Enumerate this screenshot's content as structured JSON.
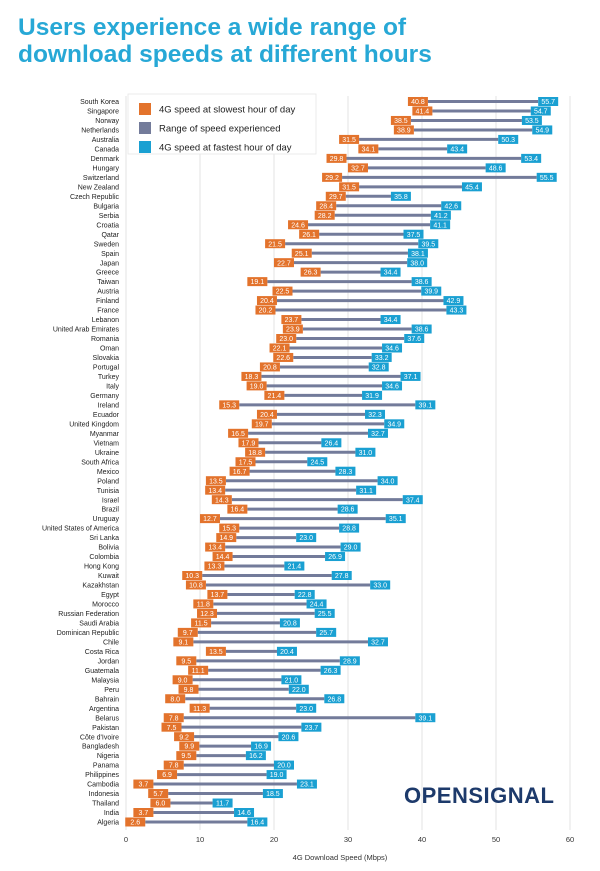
{
  "title_lines": [
    "Users experience a wide range of",
    "download speeds at different hours"
  ],
  "logo_text": "OPENSIGNAL",
  "colors": {
    "slow": "#e3732c",
    "fast": "#1aa0d2",
    "range": "#737b9a",
    "title": "#27a8d6",
    "logo": "#1d3a6b"
  },
  "chart_data": {
    "type": "bar",
    "title": "Users experience a wide range of download speeds at different hours",
    "xlabel": "4G Download Speed (Mbps)",
    "xlim": [
      0,
      60
    ],
    "xticks": [
      0,
      10,
      20,
      30,
      40,
      50,
      60
    ],
    "grid": true,
    "legend_position": "top-left",
    "legend": [
      "4G speed at slowest hour of day",
      "Range of speed experienced",
      "4G speed at fastest hour of day"
    ],
    "categories": [
      "South Korea",
      "Singapore",
      "Norway",
      "Netherlands",
      "Australia",
      "Canada",
      "Denmark",
      "Hungary",
      "Switzerland",
      "New Zealand",
      "Czech Republic",
      "Bulgaria",
      "Serbia",
      "Croatia",
      "Qatar",
      "Sweden",
      "Spain",
      "Japan",
      "Greece",
      "Taiwan",
      "Austria",
      "Finland",
      "France",
      "Lebanon",
      "United Arab Emirates",
      "Romania",
      "Oman",
      "Slovakia",
      "Portugal",
      "Turkey",
      "Italy",
      "Germany",
      "Ireland",
      "Ecuador",
      "United Kingdom",
      "Myanmar",
      "Vietnam",
      "Ukraine",
      "South Africa",
      "Mexico",
      "Poland",
      "Tunisia",
      "Israel",
      "Brazil",
      "Uruguay",
      "United States of America",
      "Sri Lanka",
      "Bolivia",
      "Colombia",
      "Hong Kong",
      "Kuwait",
      "Kazakhstan",
      "Egypt",
      "Morocco",
      "Russian Federation",
      "Saudi Arabia",
      "Dominican Republic",
      "Chile",
      "Costa Rica",
      "Jordan",
      "Guatemala",
      "Malaysia",
      "Peru",
      "Bahrain",
      "Argentina",
      "Belarus",
      "Pakistan",
      "Côte d'Ivoire",
      "Bangladesh",
      "Nigeria",
      "Panama",
      "Philippines",
      "Cambodia",
      "Indonesia",
      "Thailand",
      "India",
      "Algeria"
    ],
    "series": [
      {
        "name": "4G speed at slowest hour of day",
        "values": [
          40.8,
          41.4,
          38.5,
          38.9,
          31.5,
          34.1,
          29.8,
          32.7,
          29.2,
          31.5,
          29.7,
          28.4,
          28.2,
          24.6,
          26.1,
          21.5,
          25.1,
          22.7,
          26.3,
          19.1,
          22.5,
          20.4,
          20.2,
          23.7,
          23.9,
          23.0,
          22.1,
          22.6,
          20.8,
          18.3,
          19.0,
          21.4,
          15.3,
          20.4,
          19.7,
          16.5,
          17.9,
          18.8,
          17.5,
          16.7,
          13.5,
          13.4,
          14.3,
          16.4,
          12.7,
          15.3,
          14.9,
          13.4,
          14.4,
          13.3,
          10.3,
          10.8,
          13.7,
          11.8,
          12.3,
          11.5,
          9.7,
          9.1,
          13.5,
          9.5,
          11.1,
          9.0,
          9.8,
          8.0,
          11.3,
          7.8,
          7.5,
          9.2,
          9.9,
          9.5,
          7.8,
          6.9,
          3.7,
          5.7,
          6.0,
          3.7,
          2.6
        ]
      },
      {
        "name": "4G speed at fastest hour of day",
        "values": [
          55.7,
          54.7,
          53.5,
          54.9,
          50.3,
          43.4,
          53.4,
          48.6,
          55.5,
          45.4,
          35.8,
          42.6,
          41.2,
          41.1,
          37.5,
          39.5,
          38.1,
          38.0,
          34.4,
          38.6,
          39.9,
          42.9,
          43.3,
          34.4,
          38.6,
          37.6,
          34.6,
          33.2,
          32.8,
          37.1,
          34.6,
          31.9,
          39.1,
          32.3,
          34.9,
          32.7,
          26.4,
          31.0,
          24.5,
          28.3,
          34.0,
          31.1,
          37.4,
          28.6,
          35.1,
          28.8,
          23.0,
          29.0,
          26.9,
          21.4,
          27.8,
          33.0,
          22.8,
          24.4,
          25.5,
          20.8,
          25.7,
          32.7,
          20.4,
          28.9,
          26.3,
          21.0,
          22.0,
          26.8,
          23.0,
          39.1,
          23.7,
          20.6,
          16.9,
          16.2,
          20.0,
          19.0,
          23.1,
          18.5,
          11.7,
          14.6,
          16.4
        ]
      }
    ]
  }
}
